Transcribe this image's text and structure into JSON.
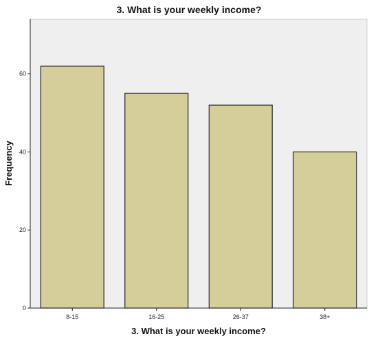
{
  "chart_data": {
    "type": "bar",
    "title": "3. What is your weekly income?",
    "xlabel": "3. What is your weekly income?",
    "ylabel": "Frequency",
    "categories": [
      "8-15",
      "16-25",
      "26-37",
      "38+"
    ],
    "values": [
      62,
      55,
      52,
      40
    ],
    "ylim": [
      0,
      74
    ],
    "yticks": [
      0,
      20,
      40,
      60
    ],
    "grid": false,
    "legend": "none",
    "colors": {
      "bar_fill": "#d5cd9a",
      "bar_stroke": "#222222",
      "plot_background": "#efefef",
      "page_background": "#ffffff"
    }
  }
}
